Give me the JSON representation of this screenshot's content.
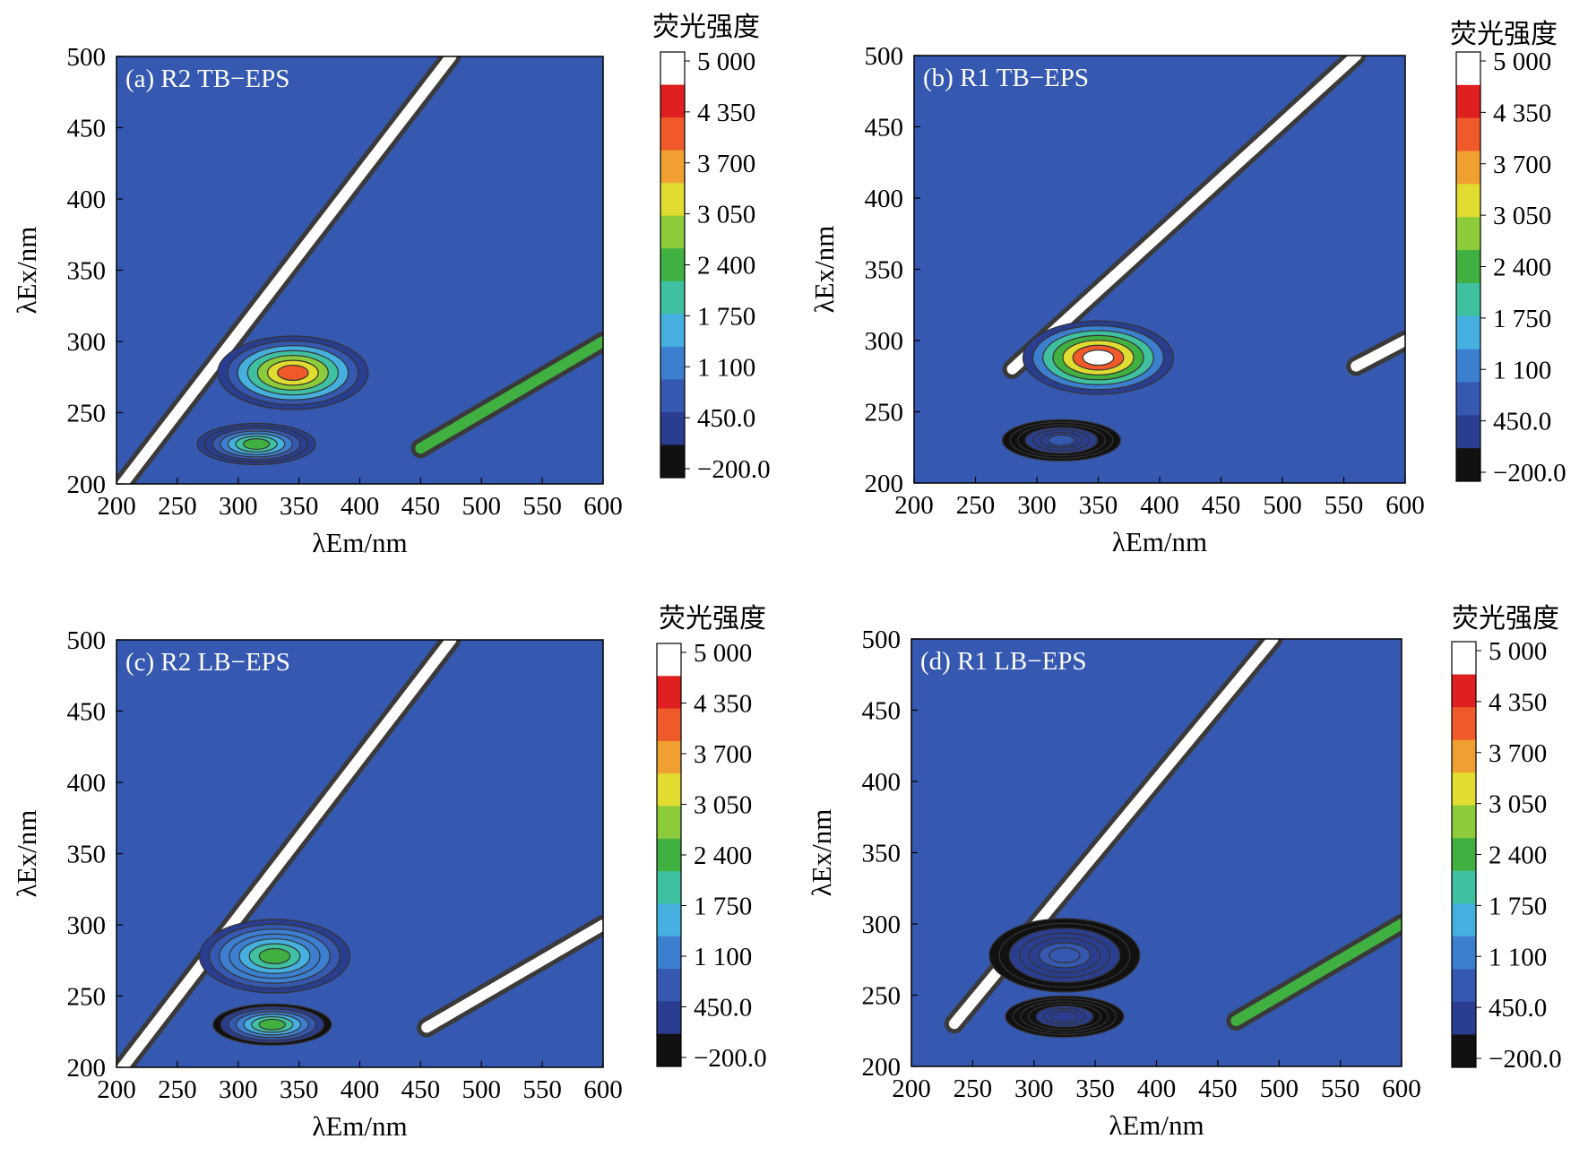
{
  "colorbar": {
    "title": "荧光强度",
    "tick_labels": [
      "5 000",
      "4 350",
      "3 700",
      "3 050",
      "2 400",
      "1 750",
      "1 100",
      "450.0",
      "−200.0"
    ],
    "min": -200,
    "max": 5000,
    "colors": [
      "#111111",
      "#2a3d8f",
      "#3558b0",
      "#3c7fd0",
      "#45b0e0",
      "#3fc0a0",
      "#40b040",
      "#8ccc3a",
      "#e0dc30",
      "#f0a030",
      "#f05a2a",
      "#e02020",
      "#ffffff"
    ]
  },
  "chart_data": [
    {
      "type": "heatmap",
      "panel": "(a)",
      "title": "R2 TB−EPS",
      "xlabel": "λEm/nm",
      "ylabel": "λEx/nm",
      "xlim": [
        200,
        600
      ],
      "ylim": [
        200,
        500
      ],
      "x_ticks": [
        "200",
        "250",
        "300",
        "350",
        "400",
        "450",
        "500",
        "550",
        "600"
      ],
      "y_ticks": [
        "200",
        "250",
        "300",
        "350",
        "400",
        "450",
        "500"
      ],
      "peaks": [
        {
          "em": 345,
          "ex": 278,
          "intensity": 4200
        },
        {
          "em": 315,
          "ex": 228,
          "intensity": 2700
        }
      ],
      "scatter_bands": [
        {
          "em_start": 205,
          "ex_start": 200,
          "em_end": 475,
          "ex_end": 500,
          "intensity": 5000
        },
        {
          "em_start": 450,
          "ex_start": 225,
          "em_end": 600,
          "ex_end": 300,
          "intensity": 2600
        }
      ]
    },
    {
      "type": "heatmap",
      "panel": "(b)",
      "title": "R1 TB−EPS",
      "xlabel": "λEm/nm",
      "ylabel": "λEx/nm",
      "xlim": [
        200,
        600
      ],
      "ylim": [
        200,
        500
      ],
      "x_ticks": [
        "200",
        "250",
        "300",
        "350",
        "400",
        "450",
        "500",
        "550",
        "600"
      ],
      "y_ticks": [
        "200",
        "250",
        "300",
        "350",
        "400",
        "450",
        "500"
      ],
      "peaks": [
        {
          "em": 350,
          "ex": 288,
          "intensity": 5000
        },
        {
          "em": 320,
          "ex": 230,
          "intensity": 700
        }
      ],
      "scatter_bands": [
        {
          "em_start": 280,
          "ex_start": 280,
          "em_end": 560,
          "ex_end": 500,
          "intensity": 5000
        },
        {
          "em_start": 560,
          "ex_start": 282,
          "em_end": 600,
          "ex_end": 300,
          "intensity": 5000
        }
      ]
    },
    {
      "type": "heatmap",
      "panel": "(c)",
      "title": "R2 LB−EPS",
      "xlabel": "λEm/nm",
      "ylabel": "λEx/nm",
      "xlim": [
        200,
        600
      ],
      "ylim": [
        200,
        500
      ],
      "x_ticks": [
        "200",
        "250",
        "300",
        "350",
        "400",
        "450",
        "500",
        "550",
        "600"
      ],
      "y_ticks": [
        "200",
        "250",
        "300",
        "350",
        "400",
        "450",
        "500"
      ],
      "peaks": [
        {
          "em": 330,
          "ex": 278,
          "intensity": 2800
        },
        {
          "em": 328,
          "ex": 230,
          "intensity": 2400
        }
      ],
      "scatter_bands": [
        {
          "em_start": 205,
          "ex_start": 200,
          "em_end": 475,
          "ex_end": 500,
          "intensity": 5000
        },
        {
          "em_start": 455,
          "ex_start": 228,
          "em_end": 600,
          "ex_end": 300,
          "intensity": 5000
        }
      ]
    },
    {
      "type": "heatmap",
      "panel": "(d)",
      "title": "R1 LB−EPS",
      "xlabel": "λEm/nm",
      "ylabel": "λEx/nm",
      "xlim": [
        200,
        600
      ],
      "ylim": [
        200,
        500
      ],
      "x_ticks": [
        "200",
        "250",
        "300",
        "350",
        "400",
        "450",
        "500",
        "550",
        "600"
      ],
      "y_ticks": [
        "200",
        "250",
        "300",
        "350",
        "400",
        "450",
        "500"
      ],
      "peaks": [
        {
          "em": 325,
          "ex": 278,
          "intensity": 1000
        },
        {
          "em": 325,
          "ex": 235,
          "intensity": 500
        }
      ],
      "scatter_bands": [
        {
          "em_start": 235,
          "ex_start": 230,
          "em_end": 495,
          "ex_end": 500,
          "intensity": 5000
        },
        {
          "em_start": 465,
          "ex_start": 232,
          "em_end": 600,
          "ex_end": 300,
          "intensity": 2600
        }
      ]
    }
  ]
}
